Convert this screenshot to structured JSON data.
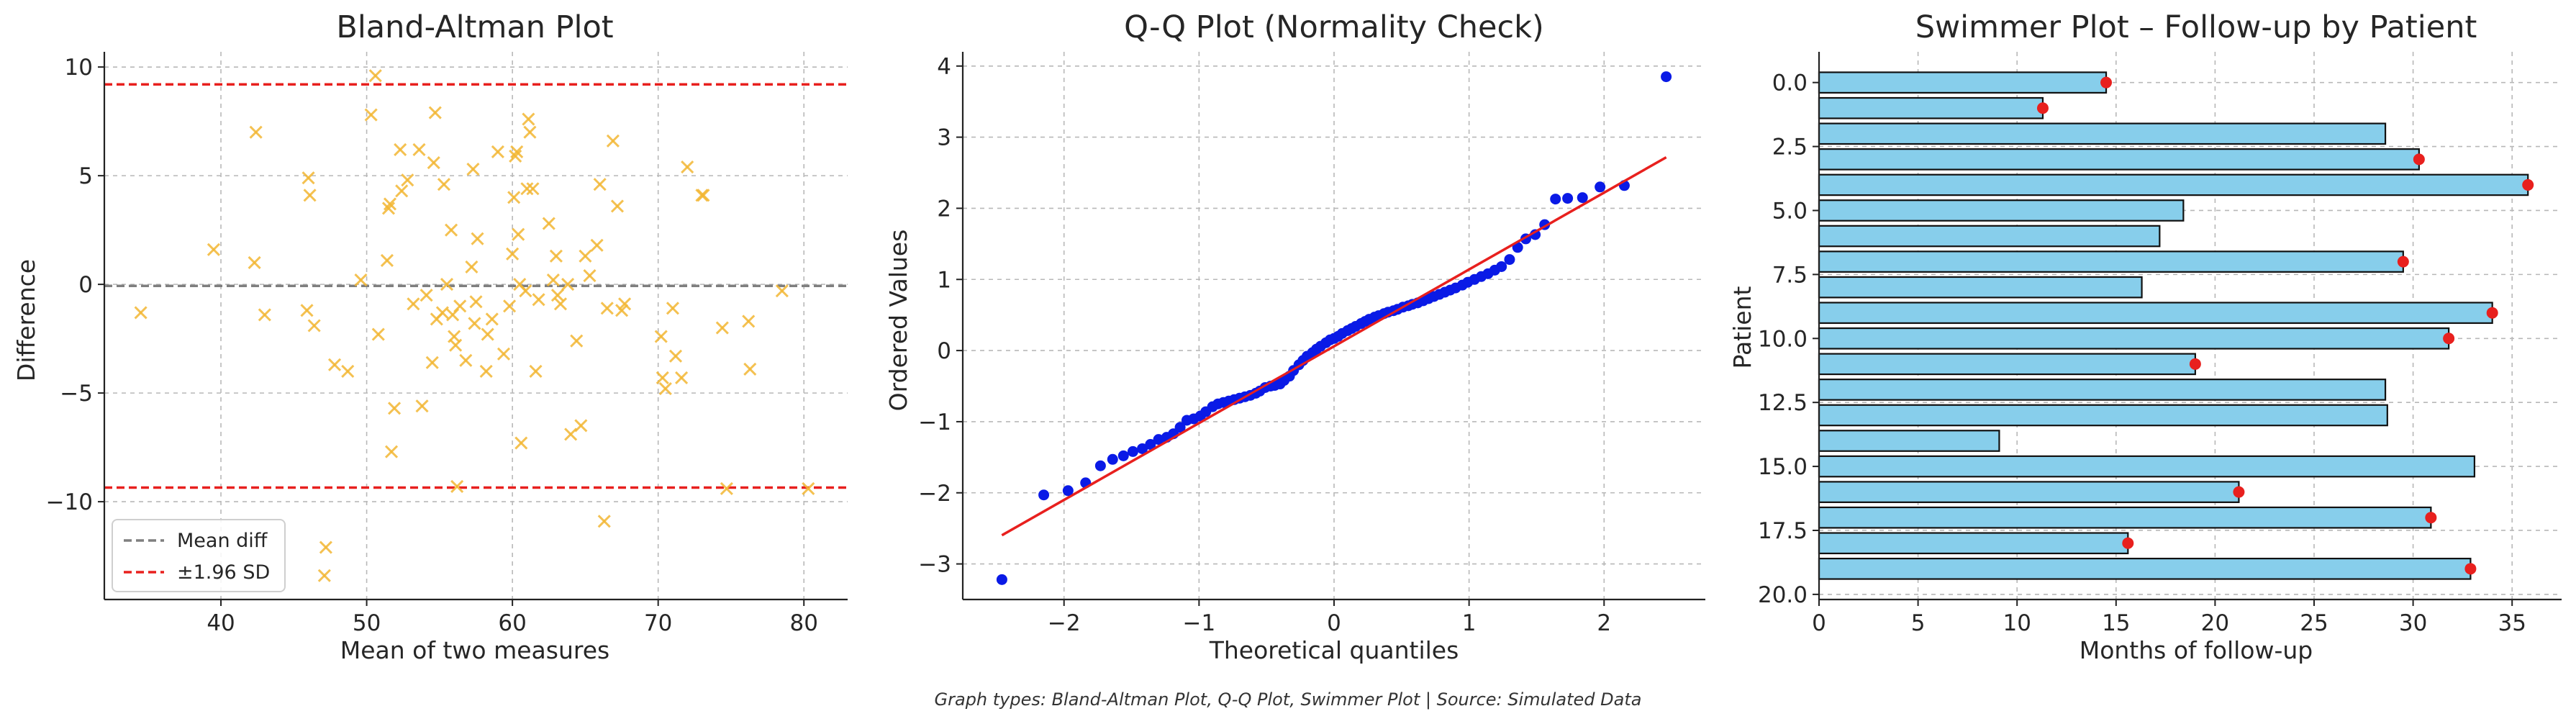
{
  "caption": "Graph types: Bland-Altman Plot, Q-Q Plot, Swimmer Plot | Source: Simulated Data",
  "chart_data": [
    {
      "type": "scatter",
      "title": "Bland-Altman Plot",
      "xlabel": "Mean of two measures",
      "ylabel": "Difference",
      "xlim": [
        32,
        83
      ],
      "ylim": [
        -14.5,
        10.7
      ],
      "xticks": [
        40,
        50,
        60,
        70,
        80
      ],
      "yticks": [
        10,
        5,
        0,
        -5,
        -10
      ],
      "grid": true,
      "legend_position": "lower-left",
      "marker": "x",
      "marker_color": "#f2b632",
      "points": [
        [
          34.5,
          -1.3
        ],
        [
          39.5,
          1.6
        ],
        [
          42.3,
          1.0
        ],
        [
          42.4,
          7.0
        ],
        [
          43.0,
          -1.4
        ],
        [
          45.9,
          -1.2
        ],
        [
          46.0,
          4.9
        ],
        [
          46.1,
          4.1
        ],
        [
          46.4,
          -1.9
        ],
        [
          47.2,
          -12.1
        ],
        [
          47.1,
          -13.4
        ],
        [
          47.8,
          -3.7
        ],
        [
          48.7,
          -4.0
        ],
        [
          49.6,
          0.2
        ],
        [
          50.3,
          7.8
        ],
        [
          50.6,
          9.6
        ],
        [
          50.8,
          -2.3
        ],
        [
          51.4,
          1.1
        ],
        [
          51.5,
          3.5
        ],
        [
          51.6,
          3.7
        ],
        [
          51.7,
          -7.7
        ],
        [
          51.9,
          -5.7
        ],
        [
          52.3,
          6.2
        ],
        [
          52.4,
          4.3
        ],
        [
          52.8,
          4.8
        ],
        [
          53.2,
          -0.9
        ],
        [
          53.6,
          6.2
        ],
        [
          53.8,
          -5.6
        ],
        [
          54.1,
          -0.5
        ],
        [
          54.5,
          -3.6
        ],
        [
          54.6,
          5.6
        ],
        [
          54.7,
          7.9
        ],
        [
          54.8,
          -1.6
        ],
        [
          55.2,
          -1.3
        ],
        [
          55.3,
          4.6
        ],
        [
          55.5,
          0.0
        ],
        [
          55.8,
          2.5
        ],
        [
          55.9,
          -1.4
        ],
        [
          56.0,
          -2.4
        ],
        [
          56.1,
          -2.8
        ],
        [
          56.2,
          -9.3
        ],
        [
          56.4,
          -1.0
        ],
        [
          56.8,
          -3.5
        ],
        [
          57.2,
          0.8
        ],
        [
          57.3,
          5.3
        ],
        [
          57.4,
          -1.8
        ],
        [
          57.5,
          -0.8
        ],
        [
          57.6,
          2.1
        ],
        [
          58.2,
          -4.0
        ],
        [
          58.3,
          -2.3
        ],
        [
          58.6,
          -1.6
        ],
        [
          59.0,
          6.1
        ],
        [
          59.4,
          -3.2
        ],
        [
          59.8,
          -1.0
        ],
        [
          60.0,
          1.4
        ],
        [
          60.1,
          4.0
        ],
        [
          60.2,
          5.9
        ],
        [
          60.3,
          6.1
        ],
        [
          60.4,
          2.3
        ],
        [
          60.5,
          0.0
        ],
        [
          60.6,
          -7.3
        ],
        [
          60.9,
          -0.3
        ],
        [
          61.0,
          4.4
        ],
        [
          61.1,
          7.6
        ],
        [
          61.2,
          7.0
        ],
        [
          61.4,
          4.4
        ],
        [
          61.6,
          -4.0
        ],
        [
          61.8,
          -0.7
        ],
        [
          62.5,
          2.8
        ],
        [
          62.8,
          0.2
        ],
        [
          63.0,
          1.3
        ],
        [
          63.1,
          -0.5
        ],
        [
          63.3,
          -0.9
        ],
        [
          63.8,
          0.0
        ],
        [
          64.0,
          -6.9
        ],
        [
          64.4,
          -2.6
        ],
        [
          64.7,
          -6.5
        ],
        [
          65.0,
          1.3
        ],
        [
          65.3,
          0.4
        ],
        [
          65.8,
          1.8
        ],
        [
          66.0,
          4.6
        ],
        [
          66.3,
          -10.9
        ],
        [
          66.5,
          -1.1
        ],
        [
          66.9,
          6.6
        ],
        [
          67.2,
          3.6
        ],
        [
          67.5,
          -1.2
        ],
        [
          67.7,
          -0.9
        ],
        [
          70.2,
          -2.4
        ],
        [
          70.3,
          -4.3
        ],
        [
          70.5,
          -4.8
        ],
        [
          71.0,
          -1.1
        ],
        [
          71.2,
          -3.3
        ],
        [
          71.6,
          -4.3
        ],
        [
          72.0,
          5.4
        ],
        [
          73.0,
          4.1
        ],
        [
          73.1,
          4.1
        ],
        [
          74.4,
          -2.0
        ],
        [
          74.7,
          -9.4
        ],
        [
          76.2,
          -1.7
        ],
        [
          76.3,
          -3.9
        ],
        [
          78.5,
          -0.3
        ],
        [
          80.3,
          -9.4
        ]
      ],
      "reference_lines": [
        {
          "name": "Mean diff",
          "y": -0.07,
          "color": "#7f7f7f",
          "style": "dashed"
        },
        {
          "name": "±1.96 SD",
          "y": 9.2,
          "color": "#e8201e",
          "style": "dashed"
        },
        {
          "name": "±1.96 SD",
          "y": -9.35,
          "color": "#e8201e",
          "style": "dashed"
        }
      ],
      "legend": [
        {
          "label": "Mean diff",
          "color": "#7f7f7f"
        },
        {
          "label": "±1.96 SD",
          "color": "#e8201e"
        }
      ]
    },
    {
      "type": "scatter",
      "title": "Q-Q Plot (Normality Check)",
      "xlabel": "Theoretical quantiles",
      "ylabel": "Ordered Values",
      "xlim": [
        -2.75,
        2.75
      ],
      "ylim": [
        -3.5,
        4.2
      ],
      "xticks": [
        -2,
        -1,
        0,
        1,
        2
      ],
      "yticks": [
        4,
        3,
        2,
        1,
        0,
        -1,
        -2,
        -3
      ],
      "grid": true,
      "marker_color": "#0a1ae6",
      "fit_line": {
        "slope": 1.08,
        "intercept": 0.06,
        "x_range": [
          -2.46,
          2.46
        ],
        "color": "#e8201e"
      },
      "points": [
        [
          -2.46,
          -3.22
        ],
        [
          -2.15,
          -2.03
        ],
        [
          -1.97,
          -1.97
        ],
        [
          -1.84,
          -1.86
        ],
        [
          -1.73,
          -1.62
        ],
        [
          -1.64,
          -1.53
        ],
        [
          -1.56,
          -1.48
        ],
        [
          -1.49,
          -1.42
        ],
        [
          -1.42,
          -1.38
        ],
        [
          -1.36,
          -1.32
        ],
        [
          -1.3,
          -1.25
        ],
        [
          -1.24,
          -1.22
        ],
        [
          -1.19,
          -1.17
        ],
        [
          -1.14,
          -1.08
        ],
        [
          -1.09,
          -0.98
        ],
        [
          -1.04,
          -0.96
        ],
        [
          -0.99,
          -0.92
        ],
        [
          -0.95,
          -0.86
        ],
        [
          -0.9,
          -0.79
        ],
        [
          -0.86,
          -0.75
        ],
        [
          -0.82,
          -0.73
        ],
        [
          -0.78,
          -0.71
        ],
        [
          -0.74,
          -0.69
        ],
        [
          -0.7,
          -0.67
        ],
        [
          -0.66,
          -0.65
        ],
        [
          -0.62,
          -0.63
        ],
        [
          -0.58,
          -0.6
        ],
        [
          -0.55,
          -0.57
        ],
        [
          -0.51,
          -0.52
        ],
        [
          -0.47,
          -0.5
        ],
        [
          -0.44,
          -0.49
        ],
        [
          -0.4,
          -0.47
        ],
        [
          -0.37,
          -0.42
        ],
        [
          -0.33,
          -0.36
        ],
        [
          -0.3,
          -0.28
        ],
        [
          -0.26,
          -0.2
        ],
        [
          -0.23,
          -0.14
        ],
        [
          -0.2,
          -0.08
        ],
        [
          -0.16,
          -0.03
        ],
        [
          -0.13,
          0.02
        ],
        [
          -0.1,
          0.06
        ],
        [
          -0.06,
          0.11
        ],
        [
          -0.03,
          0.15
        ],
        [
          0.0,
          0.17
        ],
        [
          0.03,
          0.2
        ],
        [
          0.06,
          0.24
        ],
        [
          0.1,
          0.28
        ],
        [
          0.13,
          0.31
        ],
        [
          0.16,
          0.34
        ],
        [
          0.2,
          0.38
        ],
        [
          0.23,
          0.41
        ],
        [
          0.26,
          0.44
        ],
        [
          0.3,
          0.47
        ],
        [
          0.33,
          0.49
        ],
        [
          0.37,
          0.52
        ],
        [
          0.4,
          0.54
        ],
        [
          0.44,
          0.56
        ],
        [
          0.47,
          0.58
        ],
        [
          0.51,
          0.61
        ],
        [
          0.55,
          0.63
        ],
        [
          0.58,
          0.65
        ],
        [
          0.62,
          0.67
        ],
        [
          0.66,
          0.7
        ],
        [
          0.7,
          0.73
        ],
        [
          0.74,
          0.76
        ],
        [
          0.78,
          0.79
        ],
        [
          0.82,
          0.82
        ],
        [
          0.86,
          0.85
        ],
        [
          0.9,
          0.88
        ],
        [
          0.95,
          0.92
        ],
        [
          0.99,
          0.96
        ],
        [
          1.04,
          1.0
        ],
        [
          1.09,
          1.04
        ],
        [
          1.14,
          1.08
        ],
        [
          1.19,
          1.13
        ],
        [
          1.24,
          1.18
        ],
        [
          1.3,
          1.28
        ],
        [
          1.36,
          1.45
        ],
        [
          1.42,
          1.57
        ],
        [
          1.49,
          1.63
        ],
        [
          1.56,
          1.77
        ],
        [
          1.64,
          2.13
        ],
        [
          1.73,
          2.14
        ],
        [
          1.84,
          2.15
        ],
        [
          1.97,
          2.3
        ],
        [
          2.15,
          2.32
        ],
        [
          2.46,
          3.85
        ]
      ]
    },
    {
      "type": "bar",
      "orientation": "horizontal",
      "title": "Swimmer Plot – Follow-up by Patient",
      "xlabel": "Months of follow-up",
      "ylabel": "Patient",
      "xlim": [
        0,
        37.5
      ],
      "ylim": [
        20.2,
        -1.2
      ],
      "xticks": [
        0,
        5,
        10,
        15,
        20,
        25,
        30,
        35
      ],
      "yticks": [
        0.0,
        2.5,
        5.0,
        7.5,
        10.0,
        12.5,
        15.0,
        17.5,
        20.0
      ],
      "ytick_labels": [
        "0.0",
        "2.5",
        "5.0",
        "7.5",
        "10.0",
        "12.5",
        "15.0",
        "17.5",
        "20.0"
      ],
      "xtick_labels": [
        "0",
        "5",
        "10",
        "15",
        "20",
        "25",
        "30",
        "35"
      ],
      "grid": true,
      "bar_color": "#87ceeb",
      "event_marker_color": "#e8201e",
      "patients": [
        0,
        1,
        2,
        3,
        4,
        5,
        6,
        7,
        8,
        9,
        10,
        11,
        12,
        13,
        14,
        15,
        16,
        17,
        18,
        19
      ],
      "values": [
        14.5,
        11.3,
        28.6,
        30.3,
        35.8,
        18.4,
        17.2,
        29.5,
        16.3,
        34.0,
        31.8,
        19.0,
        28.6,
        28.7,
        9.1,
        33.1,
        21.2,
        30.9,
        15.6,
        32.9
      ],
      "events": [
        true,
        true,
        false,
        true,
        true,
        false,
        false,
        true,
        false,
        true,
        true,
        true,
        false,
        false,
        false,
        false,
        true,
        true,
        true,
        true
      ]
    }
  ]
}
